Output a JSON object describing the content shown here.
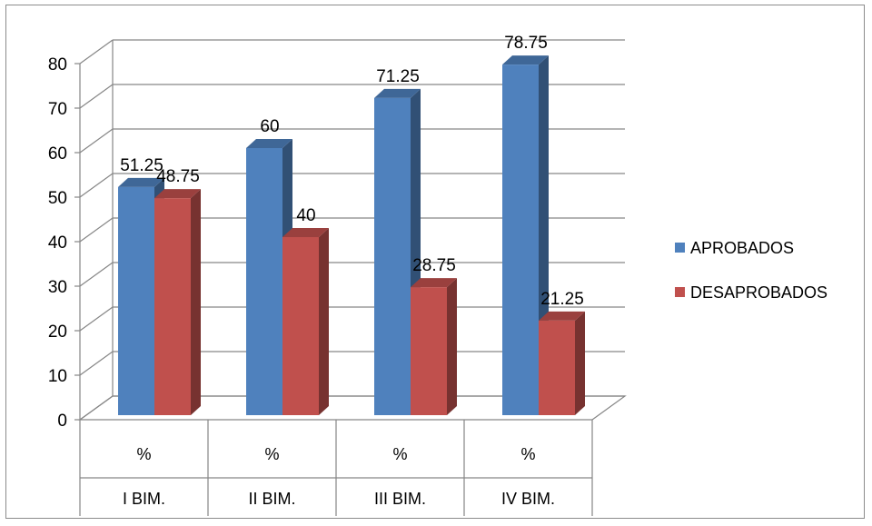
{
  "chart_data": {
    "type": "bar",
    "title": "",
    "xlabel": "",
    "ylabel": "",
    "ylim": [
      0,
      80
    ],
    "yticks": [
      0,
      10,
      20,
      30,
      40,
      50,
      60,
      70,
      80
    ],
    "grid": true,
    "legend_position": "right",
    "categories": [
      {
        "group": "I BIM.",
        "sub": "%"
      },
      {
        "group": "II BIM.",
        "sub": "%"
      },
      {
        "group": "III BIM.",
        "sub": "%"
      },
      {
        "group": "IV BIM.",
        "sub": "%"
      }
    ],
    "series": [
      {
        "name": "APROBADOS",
        "color": "#4f81bd",
        "values": [
          51.25,
          60,
          71.25,
          78.75
        ],
        "labels": [
          "51.25",
          "60",
          "71.25",
          "78.75"
        ]
      },
      {
        "name": "DESAPROBADOS",
        "color": "#c0504d",
        "values": [
          48.75,
          40,
          28.75,
          21.25
        ],
        "labels": [
          "48.75",
          "40",
          "28.75",
          "21.25"
        ]
      }
    ]
  }
}
